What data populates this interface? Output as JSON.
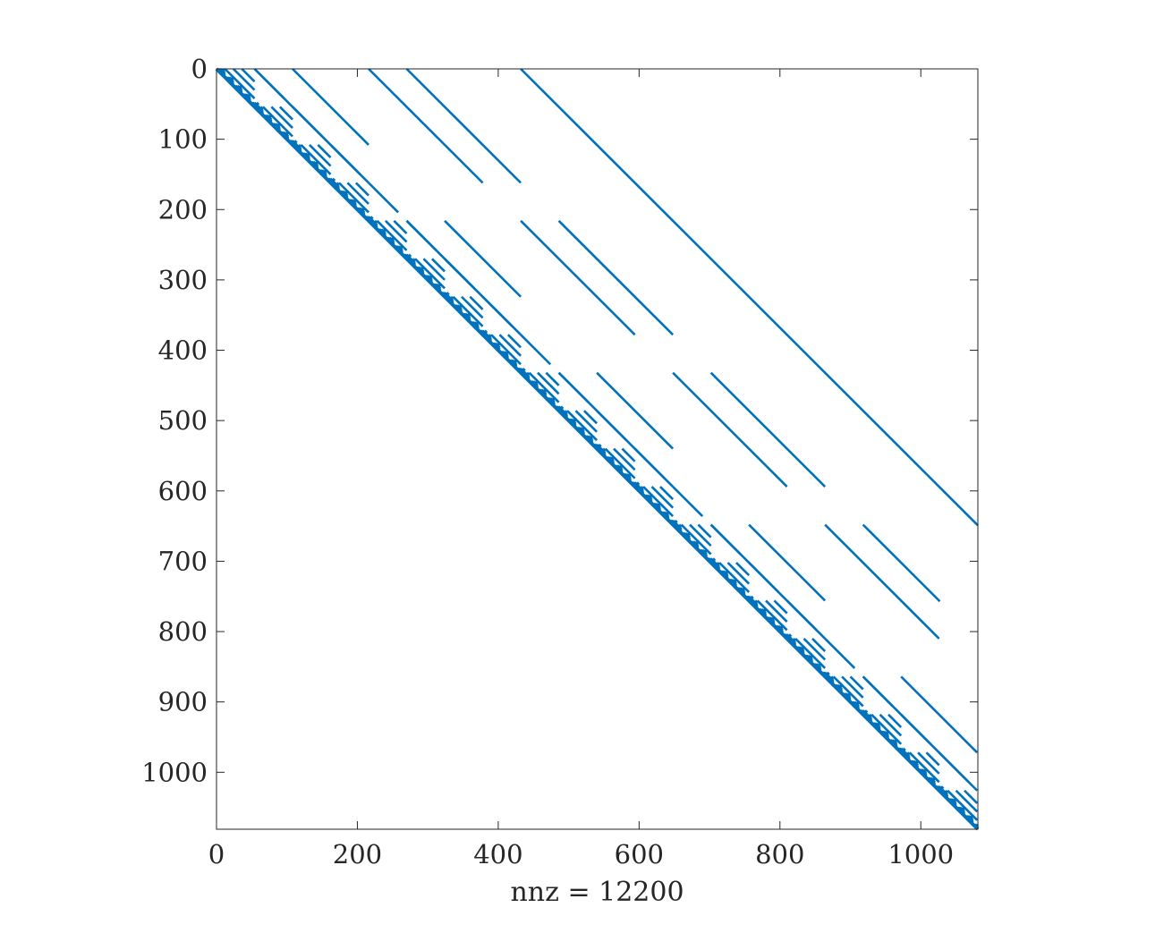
{
  "chart_data": {
    "type": "spy",
    "xlabel": "nnz = 12200",
    "ylabel": "",
    "title": "",
    "xlim": [
      0,
      1081
    ],
    "ylim": [
      0,
      1081
    ],
    "y_reversed": true,
    "xticks": [
      0,
      200,
      400,
      600,
      800,
      1000
    ],
    "xtick_labels": [
      "0",
      "200",
      "400",
      "600",
      "800",
      "1000"
    ],
    "yticks": [
      0,
      100,
      200,
      300,
      400,
      500,
      600,
      700,
      800,
      900,
      1000
    ],
    "ytick_labels": [
      "0",
      "100",
      "200",
      "300",
      "400",
      "500",
      "600",
      "700",
      "800",
      "900",
      "1000"
    ],
    "matrix_size": [
      1081,
      1081
    ],
    "nnz": 12200,
    "marker_color": "#0072BD",
    "grid": false,
    "structure": {
      "description_of_pattern": "upper-triangular recursive block-diagonal sparsity",
      "diagonals": [
        {
          "offset": 0,
          "row_range": [
            0,
            1081
          ]
        },
        {
          "offset": 432,
          "row_range": [
            0,
            649
          ]
        }
      ],
      "level_blocks": [
        {
          "size": 216,
          "starts": [
            0,
            216,
            432,
            648,
            864
          ],
          "superdiag_offsets": [
            54,
            108
          ]
        },
        {
          "size": 54,
          "superdiag_offsets": [
            12,
            24,
            36
          ]
        },
        {
          "size": 12,
          "superdiag_offsets": [
            3,
            6,
            9
          ]
        }
      ]
    }
  }
}
